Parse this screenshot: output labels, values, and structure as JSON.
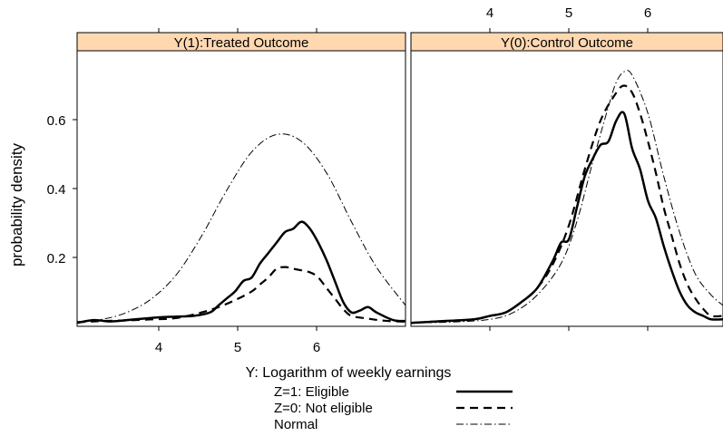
{
  "chart_data": {
    "type": "line",
    "ylabel": "probability density",
    "xlabel": "Y: Logarithm of weekly earnings",
    "xlim": [
      3.0,
      6.95
    ],
    "ylim": [
      -0.01,
      0.78
    ],
    "x_ticks": [
      4,
      5,
      6
    ],
    "y_ticks": [
      0.2,
      0.4,
      0.6
    ],
    "y_tick_labels": [
      "0.2",
      "0.4",
      "0.6"
    ],
    "strip_color": "#ffd8b0",
    "legend": [
      {
        "label": "Z=1: Eligible",
        "line": "solid"
      },
      {
        "label": "Z=0: Not eligible",
        "line": "dashed"
      },
      {
        "label": "Normal",
        "line": "dashdot"
      }
    ],
    "panels": [
      {
        "title": "Y(1):Treated Outcome",
        "x_tick_position": "bottom",
        "series": [
          {
            "name": "Z=1: Eligible",
            "line": "solid",
            "x": [
              3.0,
              3.2,
              3.4,
              3.6,
              3.8,
              4.0,
              4.2,
              4.4,
              4.6,
              4.7,
              4.8,
              4.9,
              5.0,
              5.1,
              5.2,
              5.3,
              5.4,
              5.5,
              5.6,
              5.7,
              5.8,
              5.9,
              6.0,
              6.1,
              6.2,
              6.3,
              6.4,
              6.5,
              6.6,
              6.8,
              6.95
            ],
            "y": [
              0.0,
              0.008,
              0.004,
              0.008,
              0.012,
              0.016,
              0.018,
              0.02,
              0.03,
              0.05,
              0.07,
              0.09,
              0.12,
              0.13,
              0.17,
              0.2,
              0.23,
              0.26,
              0.27,
              0.29,
              0.27,
              0.23,
              0.18,
              0.12,
              0.06,
              0.03,
              0.035,
              0.045,
              0.03,
              0.008,
              0.005
            ]
          },
          {
            "name": "Z=0: Not eligible",
            "line": "dashed",
            "x": [
              3.0,
              3.3,
              3.6,
              3.9,
              4.2,
              4.5,
              4.7,
              4.9,
              5.1,
              5.2,
              5.3,
              5.4,
              5.5,
              5.6,
              5.8,
              5.9,
              6.0,
              6.1,
              6.2,
              6.3,
              6.5,
              6.7,
              6.95
            ],
            "y": [
              0.002,
              0.005,
              0.007,
              0.01,
              0.014,
              0.03,
              0.045,
              0.065,
              0.09,
              0.11,
              0.13,
              0.155,
              0.16,
              0.155,
              0.145,
              0.13,
              0.1,
              0.07,
              0.04,
              0.02,
              0.012,
              0.006,
              0.003
            ]
          },
          {
            "name": "Normal",
            "line": "dashdot",
            "x": [
              3.0,
              3.3,
              3.6,
              3.9,
              4.2,
              4.5,
              4.8,
              5.1,
              5.4,
              5.7,
              6.0,
              6.3,
              6.6,
              6.95
            ],
            "y": [
              0.002,
              0.01,
              0.03,
              0.07,
              0.14,
              0.25,
              0.38,
              0.49,
              0.54,
              0.52,
              0.43,
              0.29,
              0.16,
              0.05
            ]
          }
        ]
      },
      {
        "title": "Y(0):Control Outcome",
        "x_tick_position": "top",
        "series": [
          {
            "name": "Z=1: Eligible",
            "line": "solid",
            "x": [
              3.0,
              3.4,
              3.8,
              4.0,
              4.2,
              4.4,
              4.6,
              4.8,
              4.9,
              5.0,
              5.1,
              5.2,
              5.3,
              5.4,
              5.5,
              5.6,
              5.7,
              5.8,
              5.9,
              6.0,
              6.1,
              6.2,
              6.3,
              6.4,
              6.5,
              6.6,
              6.7,
              6.8,
              6.95
            ],
            "y": [
              0.0,
              0.005,
              0.01,
              0.02,
              0.03,
              0.06,
              0.1,
              0.18,
              0.23,
              0.24,
              0.33,
              0.42,
              0.47,
              0.51,
              0.52,
              0.58,
              0.6,
              0.5,
              0.44,
              0.35,
              0.3,
              0.22,
              0.15,
              0.09,
              0.05,
              0.03,
              0.02,
              0.01,
              0.01
            ]
          },
          {
            "name": "Z=0: Not eligible",
            "line": "dashed",
            "x": [
              3.0,
              3.4,
              3.8,
              4.0,
              4.2,
              4.4,
              4.6,
              4.8,
              5.0,
              5.2,
              5.4,
              5.6,
              5.7,
              5.8,
              5.9,
              6.0,
              6.1,
              6.2,
              6.3,
              6.4,
              6.5,
              6.6,
              6.7,
              6.8,
              6.95
            ],
            "y": [
              0.0,
              0.005,
              0.01,
              0.02,
              0.03,
              0.06,
              0.1,
              0.17,
              0.28,
              0.44,
              0.58,
              0.66,
              0.68,
              0.66,
              0.6,
              0.52,
              0.43,
              0.33,
              0.25,
              0.17,
              0.11,
              0.07,
              0.04,
              0.02,
              0.02
            ]
          },
          {
            "name": "Normal",
            "line": "dashdot",
            "x": [
              3.0,
              3.5,
              4.0,
              4.3,
              4.6,
              4.9,
              5.1,
              5.3,
              5.5,
              5.6,
              5.7,
              5.8,
              6.0,
              6.2,
              6.4,
              6.6,
              6.8,
              6.95
            ],
            "y": [
              0.0,
              0.002,
              0.01,
              0.03,
              0.08,
              0.17,
              0.29,
              0.46,
              0.62,
              0.69,
              0.72,
              0.71,
              0.6,
              0.42,
              0.26,
              0.14,
              0.08,
              0.05
            ]
          }
        ]
      }
    ]
  }
}
